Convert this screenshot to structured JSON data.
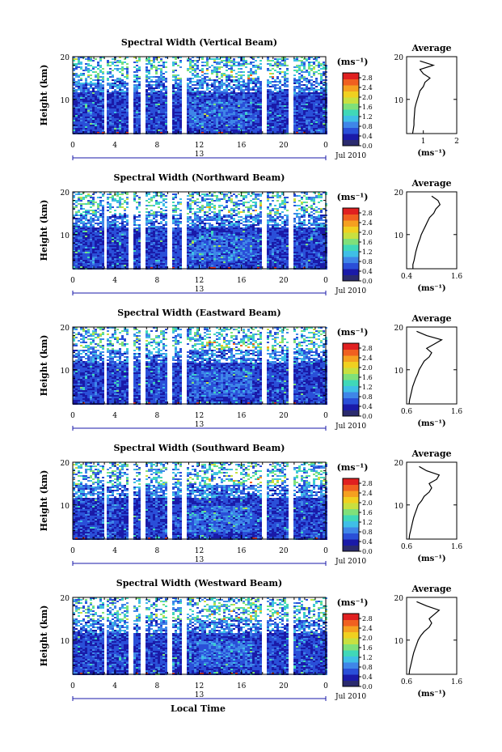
{
  "chart_data": {
    "type": "heatmap",
    "x_label": "Local Time",
    "colorbar": {
      "unit": "(ms⁻¹)",
      "ticks": [
        "0.0",
        "0.4",
        "0.8",
        "1.2",
        "1.6",
        "2.0",
        "2.4",
        "2.8"
      ],
      "range": [
        0,
        3.0
      ],
      "colors": [
        "#2b2b6e",
        "#1a1aa8",
        "#2a4fd8",
        "#3f86e8",
        "#3fbfe6",
        "#40d8b8",
        "#7fe07a",
        "#c8e040",
        "#f0d020",
        "#f5a020",
        "#f06020",
        "#e02020"
      ]
    },
    "x_ticks": [
      "0",
      "4",
      "8",
      "12",
      "16",
      "20",
      "0"
    ],
    "x_range": [
      0,
      24
    ],
    "date_labels": {
      "day": "13",
      "month": "Jul 2010"
    },
    "y_label": "Height (km)",
    "y_ticks": [
      "10",
      "20"
    ],
    "y_range": [
      2,
      20
    ],
    "avg_title": "Average",
    "avg_xlabel": "(ms⁻¹)",
    "panels": [
      {
        "title": "Spectral Width (Vertical Beam)",
        "avg_xlim": [
          0.5,
          2.0
        ],
        "avg_xticks": [
          "1",
          "2"
        ],
        "avg_profile": {
          "heights": [
            2,
            3,
            4,
            5,
            6,
            7,
            8,
            9,
            10,
            11,
            12,
            13,
            14,
            15,
            16,
            17,
            18,
            19
          ],
          "values": [
            0.68,
            0.7,
            0.72,
            0.72,
            0.73,
            0.74,
            0.75,
            0.78,
            0.82,
            0.86,
            0.9,
            1.0,
            1.05,
            1.2,
            1.0,
            0.9,
            1.3,
            0.9
          ]
        }
      },
      {
        "title": "Spectral Width (Northward Beam)",
        "avg_xlim": [
          0.4,
          1.6
        ],
        "avg_xticks": [
          "0.4",
          "1.6"
        ],
        "avg_profile": {
          "heights": [
            2,
            3,
            4,
            5,
            6,
            7,
            8,
            9,
            10,
            11,
            12,
            13,
            14,
            15,
            16,
            17,
            18,
            19
          ],
          "values": [
            0.55,
            0.55,
            0.58,
            0.6,
            0.62,
            0.65,
            0.68,
            0.72,
            0.75,
            0.8,
            0.85,
            0.9,
            0.95,
            1.05,
            1.1,
            1.2,
            1.15,
            1.0
          ]
        }
      },
      {
        "title": "Spectral Width (Eastward Beam)",
        "avg_xlim": [
          0.6,
          1.6
        ],
        "avg_xticks": [
          "0.6",
          "1.6"
        ],
        "avg_profile": {
          "heights": [
            2,
            3,
            4,
            5,
            6,
            7,
            8,
            9,
            10,
            11,
            12,
            13,
            14,
            15,
            16,
            17,
            18,
            19
          ],
          "values": [
            0.65,
            0.66,
            0.68,
            0.7,
            0.72,
            0.75,
            0.78,
            0.82,
            0.85,
            0.9,
            0.95,
            1.05,
            1.1,
            1.0,
            1.15,
            1.3,
            1.0,
            0.8
          ]
        }
      },
      {
        "title": "Spectral Width (Southward Beam)",
        "avg_xlim": [
          0.6,
          1.6
        ],
        "avg_xticks": [
          "0.6",
          "1.6"
        ],
        "avg_profile": {
          "heights": [
            2,
            3,
            4,
            5,
            6,
            7,
            8,
            9,
            10,
            11,
            12,
            13,
            14,
            15,
            16,
            17,
            18,
            19
          ],
          "values": [
            0.65,
            0.66,
            0.68,
            0.7,
            0.72,
            0.74,
            0.77,
            0.8,
            0.83,
            0.9,
            0.95,
            1.05,
            1.1,
            1.05,
            1.2,
            1.25,
            1.0,
            0.85
          ]
        }
      },
      {
        "title": "Spectral Width (Westward Beam)",
        "avg_xlim": [
          0.6,
          1.6
        ],
        "avg_xticks": [
          "0.6",
          "1.6"
        ],
        "avg_profile": {
          "heights": [
            2,
            3,
            4,
            5,
            6,
            7,
            8,
            9,
            10,
            11,
            12,
            13,
            14,
            15,
            16,
            17,
            18,
            19
          ],
          "values": [
            0.65,
            0.66,
            0.68,
            0.7,
            0.72,
            0.74,
            0.77,
            0.8,
            0.83,
            0.88,
            0.95,
            1.05,
            1.1,
            1.05,
            1.15,
            1.25,
            1.0,
            0.8
          ]
        }
      }
    ],
    "data_gaps_hours": [
      3,
      5.5,
      6.5,
      9,
      10.5,
      18,
      20.5
    ]
  }
}
